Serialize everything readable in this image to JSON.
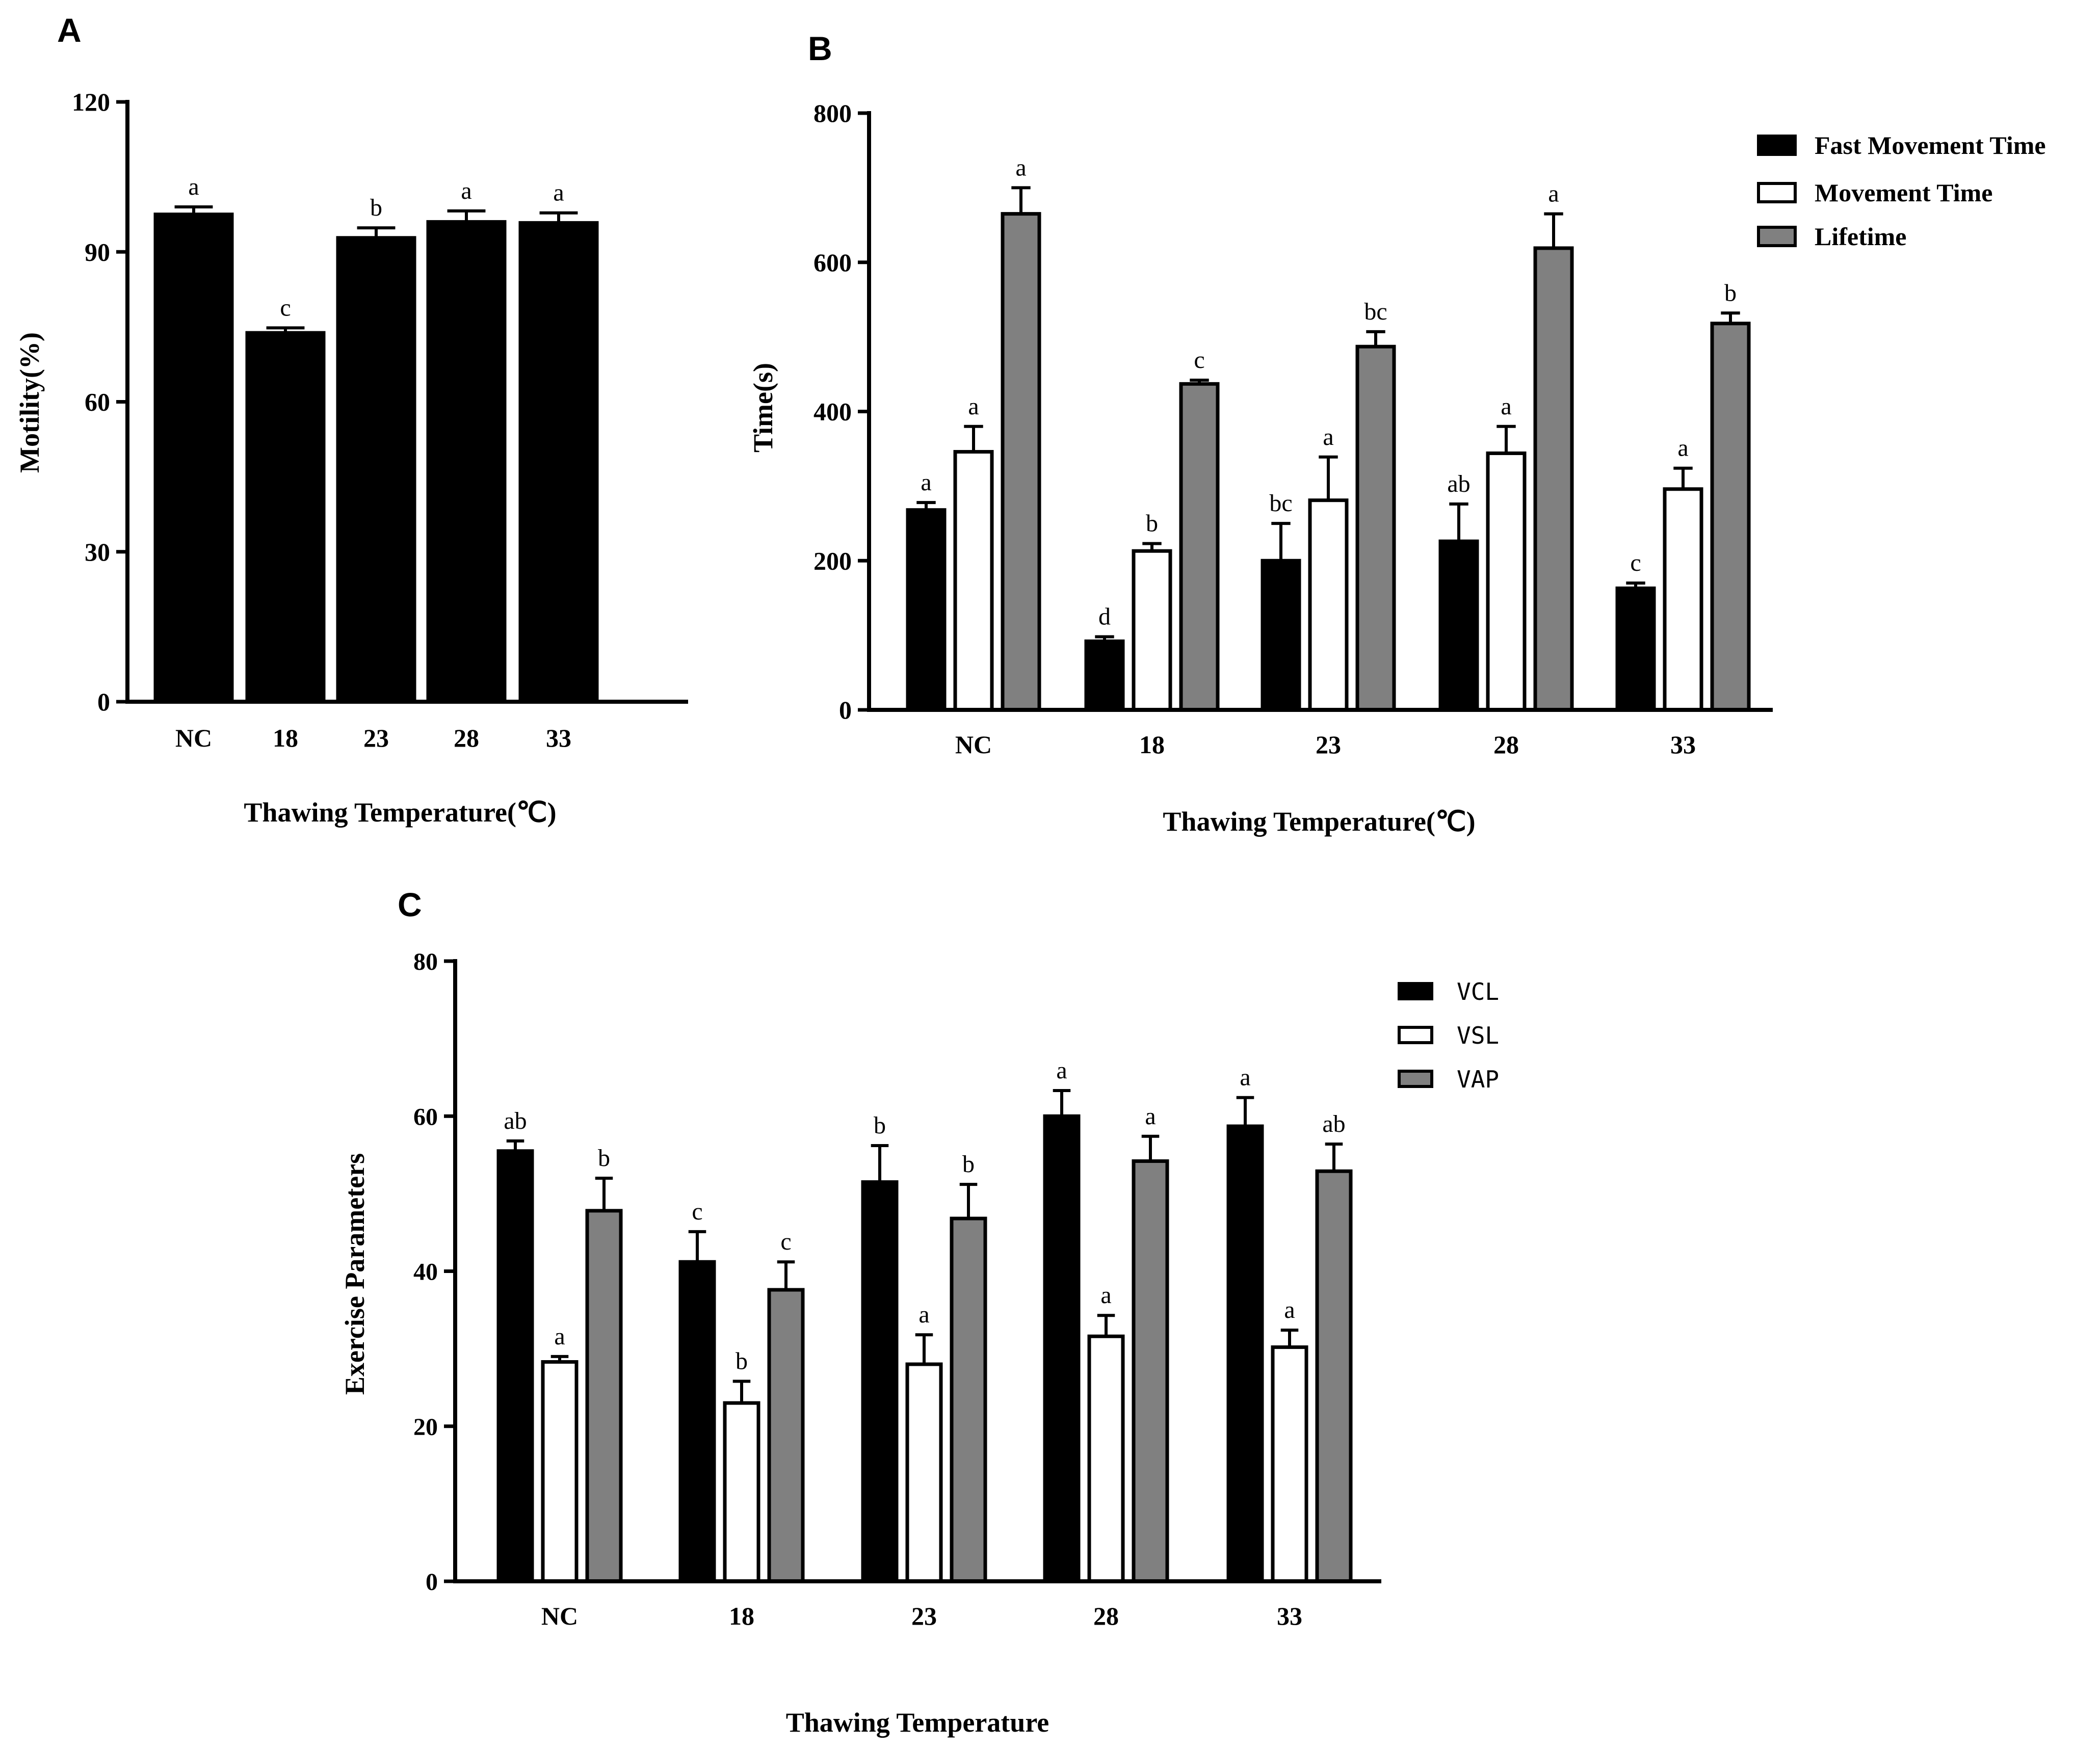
{
  "chart_data": [
    {
      "type": "bar",
      "panel": "A",
      "categories": [
        "NC",
        "18",
        "23",
        "28",
        "33"
      ],
      "series": [
        {
          "name": "Motility",
          "color": "#000000",
          "values": [
            97.5,
            73.8,
            92.8,
            96.0,
            95.8
          ],
          "errors": [
            1.5,
            1.0,
            2.0,
            2.2,
            2.0
          ],
          "letters": [
            "a",
            "c",
            "b",
            "a",
            "a"
          ]
        }
      ],
      "title": "",
      "xlabel": "Thawing Temperature(℃)",
      "ylabel": "Motility(%)",
      "ylim": [
        0,
        120
      ],
      "yticks": [
        0,
        30,
        60,
        90,
        120
      ],
      "grid": false,
      "legend": null
    },
    {
      "type": "bar",
      "panel": "B",
      "categories": [
        "NC",
        "18",
        "23",
        "28",
        "33"
      ],
      "series": [
        {
          "name": "Fast Movement Time",
          "color": "#000000",
          "values": [
            268,
            92,
            200,
            226,
            163
          ],
          "errors": [
            10,
            6,
            50,
            50,
            7
          ],
          "letters": [
            "a",
            "d",
            "bc",
            "ab",
            "c"
          ]
        },
        {
          "name": "Movement Time",
          "color": "#ffffff",
          "values": [
            346,
            213,
            281,
            344,
            296
          ],
          "errors": [
            34,
            10,
            58,
            36,
            28
          ],
          "letters": [
            "a",
            "b",
            "a",
            "a",
            "a"
          ]
        },
        {
          "name": "Lifetime",
          "color": "#808080",
          "values": [
            665,
            437,
            487,
            619,
            518
          ],
          "errors": [
            35,
            5,
            20,
            46,
            14
          ],
          "letters": [
            "a",
            "c",
            "bc",
            "a",
            "b"
          ]
        }
      ],
      "title": "",
      "xlabel": "Thawing Temperature(℃)",
      "ylabel": "Time(s)",
      "ylim": [
        0,
        800
      ],
      "yticks": [
        0,
        200,
        400,
        600,
        800
      ],
      "grid": false,
      "legend": "top-right"
    },
    {
      "type": "bar",
      "panel": "C",
      "categories": [
        "NC",
        "18",
        "23",
        "28",
        "33"
      ],
      "series": [
        {
          "name": "VCL",
          "color": "#000000",
          "values": [
            55.5,
            41.2,
            51.5,
            60.0,
            58.7
          ],
          "errors": [
            1.3,
            3.9,
            4.7,
            3.3,
            3.7
          ],
          "letters": [
            "ab",
            "c",
            "b",
            "a",
            "a"
          ]
        },
        {
          "name": "VSL",
          "color": "#ffffff",
          "values": [
            28.3,
            23.0,
            28.0,
            31.6,
            30.2
          ],
          "errors": [
            0.7,
            2.8,
            3.8,
            2.7,
            2.2
          ],
          "letters": [
            "a",
            "b",
            "a",
            "a",
            "a"
          ]
        },
        {
          "name": "VAP",
          "color": "#808080",
          "values": [
            47.8,
            37.6,
            46.8,
            54.2,
            52.9
          ],
          "errors": [
            4.2,
            3.6,
            4.4,
            3.2,
            3.5
          ],
          "letters": [
            "b",
            "c",
            "b",
            "a",
            "ab"
          ]
        }
      ],
      "title": "",
      "xlabel": "Thawing Temperature",
      "ylabel": "Exercise Parameters",
      "ylim": [
        0,
        80
      ],
      "yticks": [
        0,
        20,
        40,
        60,
        80
      ],
      "grid": false,
      "legend": "top-right"
    }
  ],
  "panel_labels": [
    "A",
    "B",
    "C"
  ]
}
